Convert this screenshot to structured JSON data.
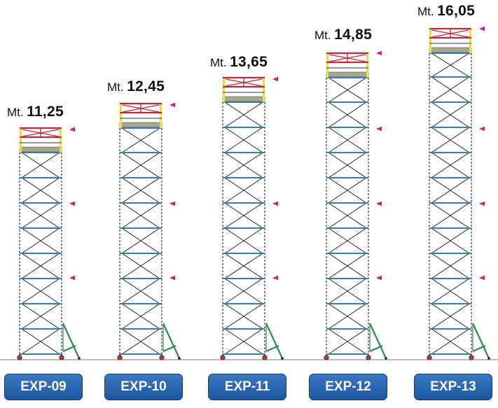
{
  "height_prefix": "Mt.",
  "colors": {
    "frame_post": "#6f6f6f",
    "horizontal_bar": "#2f7fc8",
    "diagonal_brace": "#222222",
    "top_guardrail": "#c8283c",
    "top_upright": "#f2df3a",
    "platform": "#a7a78c",
    "outrigger": "#2c8a4a",
    "marker": "#e0147c",
    "button": "#1f5aa6"
  },
  "towers": [
    {
      "model": "EXP-09",
      "height": "11,25",
      "markers": 3,
      "outrigger": true
    },
    {
      "model": "EXP-10",
      "height": "12,45",
      "markers": 3,
      "outrigger": true
    },
    {
      "model": "EXP-11",
      "height": "13,65",
      "markers": 3,
      "outrigger": true
    },
    {
      "model": "EXP-12",
      "height": "14,85",
      "markers": 4,
      "outrigger": true
    },
    {
      "model": "EXP-13",
      "height": "16,05",
      "markers": 4,
      "outrigger": true
    }
  ]
}
